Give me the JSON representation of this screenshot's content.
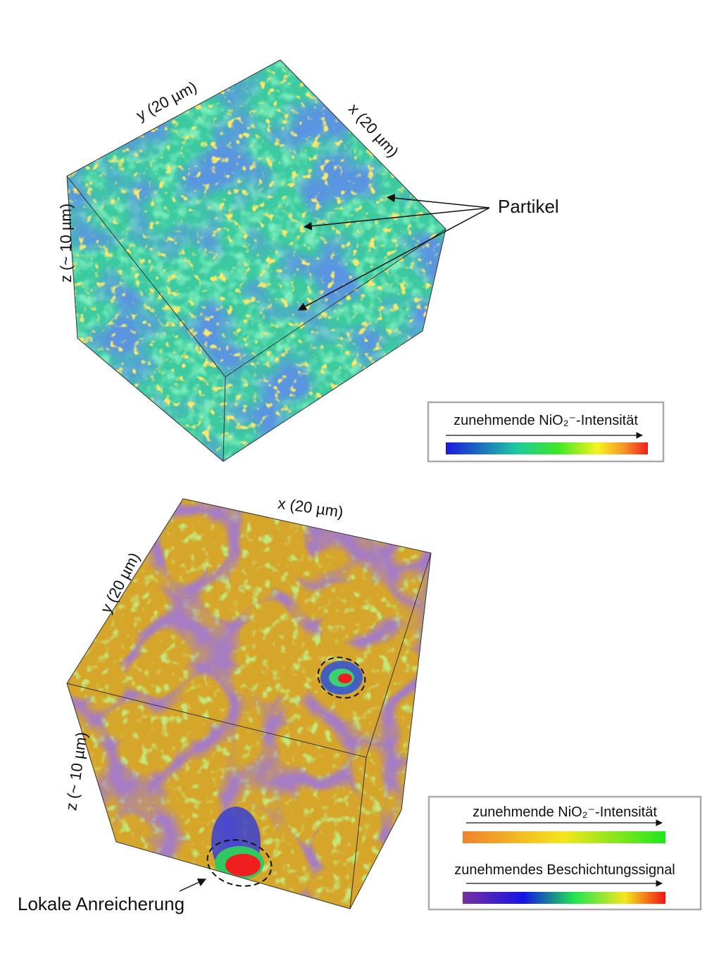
{
  "top_panel": {
    "axis_labels": {
      "y": "y (20 µm)",
      "x": "x (20 µm)",
      "z": "z (~ 10 µm)"
    },
    "annotation": "Partikel",
    "legend": {
      "label": "zunehmende NiO₂⁻-Intensität"
    }
  },
  "bottom_panel": {
    "axis_labels": {
      "x": "x (20 µm)",
      "y": "y (20 µm)",
      "z": "z (~ 10 µm)"
    },
    "annotation": "Lokale Anreicherung",
    "legend": {
      "items": [
        {
          "label": "zunehmende NiO₂⁻-Intensität"
        },
        {
          "label": "zunehmendes Beschichtungssignal"
        }
      ]
    }
  }
}
